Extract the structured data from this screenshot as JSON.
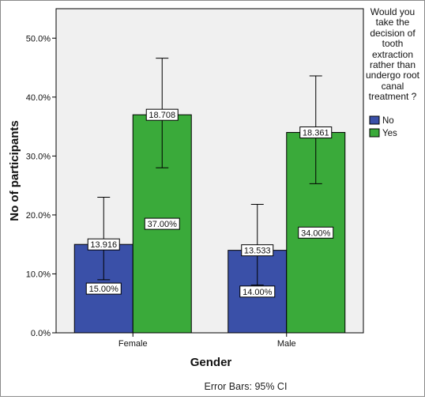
{
  "chart_data": {
    "type": "bar",
    "categories": [
      "Female",
      "Male"
    ],
    "series": [
      {
        "name": "No",
        "color": "#3a50a8",
        "values": [
          15.0,
          14.0
        ],
        "value_labels": [
          "15.00%",
          "14.00%"
        ],
        "error_labels": [
          "13.916",
          "13.533"
        ],
        "ci_low": [
          9.0,
          8.1
        ],
        "ci_high": [
          23.0,
          21.8
        ]
      },
      {
        "name": "Yes",
        "color": "#3aaa3a",
        "values": [
          37.0,
          34.0
        ],
        "value_labels": [
          "37.00%",
          "34.00%"
        ],
        "error_labels": [
          "18.708",
          "18.361"
        ],
        "ci_low": [
          28.0,
          25.3
        ],
        "ci_high": [
          46.6,
          43.6
        ]
      }
    ],
    "xlabel": "Gender",
    "ylabel": "No of participants",
    "ylim": [
      0,
      55
    ],
    "yticks": [
      0,
      10,
      20,
      30,
      40,
      50
    ],
    "ytick_labels": [
      "0.0%",
      "10.0%",
      "20.0%",
      "30.0%",
      "40.0%",
      "50.0%"
    ],
    "legend_title": "Would you take the decision of tooth extraction rather than undergo root canal treatment ?",
    "legend_placement": "right",
    "footnote": "Error Bars: 95% CI",
    "plot_background": "#f0f0f0",
    "grid": false
  }
}
